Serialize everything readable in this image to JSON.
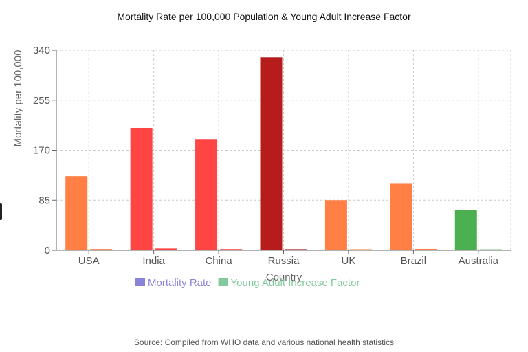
{
  "title": "Mortality Rate per 100,000 Population & Young Adult Increase Factor",
  "source": "Source: Compiled from WHO data and various national health statistics",
  "chart_data": {
    "type": "bar",
    "title": "Mortality Rate per 100,000 Population & Young Adult Increase Factor",
    "xlabel": "Country",
    "ylabel": "Mortality per 100,000",
    "categories": [
      "USA",
      "India",
      "China",
      "Russia",
      "UK",
      "Brazil",
      "Australia"
    ],
    "ylim": [
      0,
      340
    ],
    "yticks": [
      0,
      85,
      170,
      255,
      340
    ],
    "grid": true,
    "legend_position": "bottom",
    "series": [
      {
        "name": "Mortality Rate",
        "legend_color": "#8884d8",
        "values": [
          126,
          208,
          189,
          328,
          85,
          114,
          68
        ],
        "bar_colors": [
          "#ff7f45",
          "#ff4444",
          "#ff4444",
          "#b71c1c",
          "#ff7f45",
          "#ff7f45",
          "#4caf50"
        ]
      },
      {
        "name": "Young Adult Increase Factor",
        "legend_color": "#82ca9d",
        "values": [
          2.2,
          3.1,
          2.1,
          1.9,
          1.8,
          2.4,
          1.6
        ],
        "bar_colors": [
          "#ff7f45",
          "#ff4444",
          "#ff4444",
          "#b71c1c",
          "#ff7f45",
          "#ff7f45",
          "#4caf50"
        ]
      }
    ]
  }
}
